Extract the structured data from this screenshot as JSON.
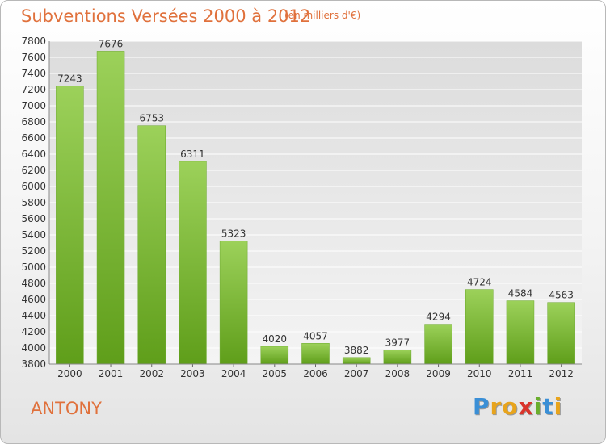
{
  "chart_data": {
    "type": "bar",
    "title": "Subventions Versées 2000 à 2012",
    "subtitle": "(en milliers d'€)",
    "categories": [
      "2000",
      "2001",
      "2002",
      "2003",
      "2004",
      "2005",
      "2006",
      "2007",
      "2008",
      "2009",
      "2010",
      "2011",
      "2012"
    ],
    "values": [
      7243,
      7676,
      6753,
      6311,
      5323,
      4020,
      4057,
      3882,
      3977,
      4294,
      4724,
      4584,
      4563
    ],
    "ylim": [
      3800,
      7800
    ],
    "ytick_step": 200,
    "grid": true,
    "bar_color": "#7ab72f"
  },
  "footer": {
    "city": "ANTONY",
    "logo": {
      "letters": [
        "P",
        "r",
        "o",
        "x",
        "i",
        "t",
        "i"
      ],
      "colors": [
        "#3a8fd6",
        "#e8a41c",
        "#e8a41c",
        "#d9342b",
        "#6aae2c",
        "#3a8fd6",
        "#e8a41c"
      ]
    }
  }
}
